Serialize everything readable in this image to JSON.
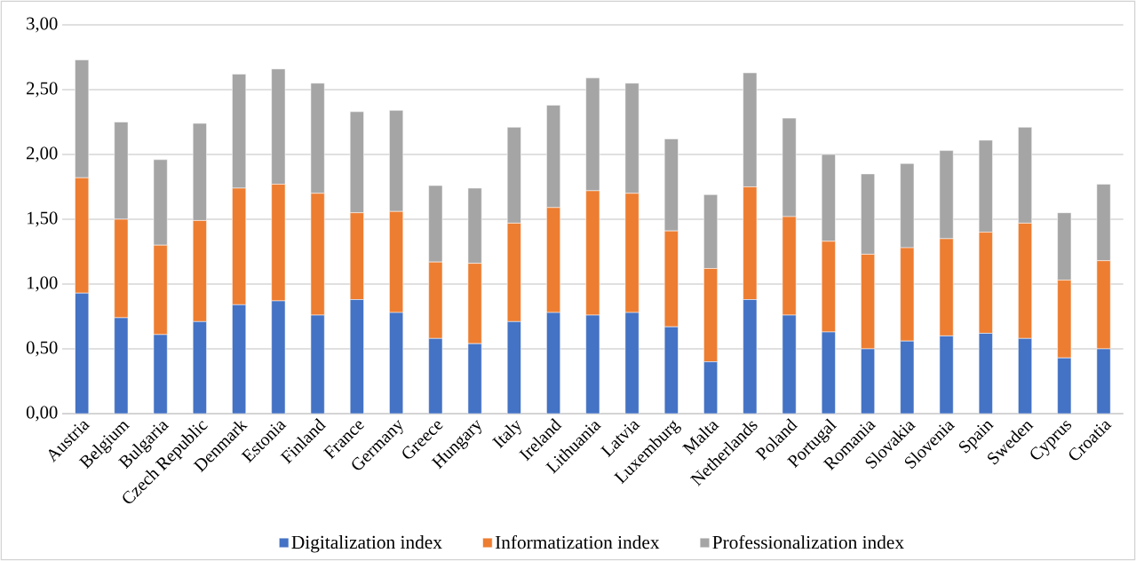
{
  "chart_data": {
    "type": "bar",
    "stacked": true,
    "grid": "y",
    "legend": "bottom",
    "categories": [
      "Austria",
      "Belgium",
      "Bulgaria",
      "Czech Republic",
      "Denmark",
      "Estonia",
      "Finland",
      "France",
      "Germany",
      "Greece",
      "Hungary",
      "Italy",
      "Ireland",
      "Lithuania",
      "Latvia",
      "Luxemburg",
      "Malta",
      "Netherlands",
      "Poland",
      "Portugal",
      "Romania",
      "Slovakia",
      "Slovenia",
      "Spain",
      "Sweden",
      "Cyprus",
      "Croatia"
    ],
    "ylim": [
      0,
      3
    ],
    "yticks": [
      {
        "value": 0,
        "label": "0,00"
      },
      {
        "value": 0.5,
        "label": "0,50"
      },
      {
        "value": 1,
        "label": "1,00"
      },
      {
        "value": 1.5,
        "label": "1,50"
      },
      {
        "value": 2,
        "label": "2,00"
      },
      {
        "value": 2.5,
        "label": "2,50"
      },
      {
        "value": 3,
        "label": "3,00"
      }
    ],
    "series": [
      {
        "name": "Digitalization index",
        "color": "#4472c4",
        "values": [
          0.93,
          0.74,
          0.61,
          0.71,
          0.84,
          0.87,
          0.76,
          0.88,
          0.78,
          0.58,
          0.54,
          0.71,
          0.78,
          0.76,
          0.78,
          0.67,
          0.4,
          0.88,
          0.76,
          0.63,
          0.5,
          0.56,
          0.6,
          0.62,
          0.58,
          0.43,
          0.5
        ]
      },
      {
        "name": "Informatization index",
        "color": "#ed7d31",
        "values": [
          0.89,
          0.76,
          0.69,
          0.78,
          0.9,
          0.9,
          0.94,
          0.67,
          0.78,
          0.59,
          0.62,
          0.76,
          0.81,
          0.96,
          0.92,
          0.74,
          0.72,
          0.87,
          0.76,
          0.7,
          0.73,
          0.72,
          0.75,
          0.78,
          0.89,
          0.6,
          0.68
        ]
      },
      {
        "name": "Professionalization index",
        "color": "#a5a5a5",
        "values": [
          0.91,
          0.75,
          0.66,
          0.75,
          0.88,
          0.89,
          0.85,
          0.78,
          0.78,
          0.59,
          0.58,
          0.74,
          0.79,
          0.87,
          0.85,
          0.71,
          0.57,
          0.88,
          0.76,
          0.67,
          0.62,
          0.65,
          0.68,
          0.71,
          0.74,
          0.52,
          0.59
        ]
      }
    ]
  }
}
